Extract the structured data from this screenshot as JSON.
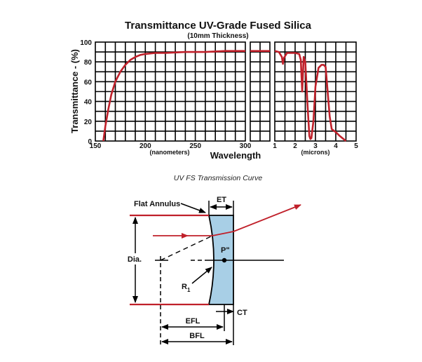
{
  "chart": {
    "title": "Transmittance UV-Grade Fused Silica",
    "subtitle": "(10mm Thickness)",
    "ylabel": "Transmittance - (%)",
    "xlabel": "Wavelength",
    "nm_unit": "(nanometers)",
    "micron_unit": "(microns)",
    "caption": "UV FS Transmission Curve",
    "curve_color": "#c0202a"
  },
  "chart_data": {
    "type": "line",
    "title": "Transmittance UV-Grade Fused Silica",
    "subtitle": "(10mm Thickness)",
    "xlabel": "Wavelength",
    "ylabel": "Transmittance - (%)",
    "ylim": [
      0,
      100
    ],
    "yticks": [
      "0",
      "20",
      "40",
      "60",
      "80",
      "100"
    ],
    "grid": true,
    "panels": [
      {
        "unit": "nanometers",
        "xlim": [
          150,
          300
        ],
        "xticks": [
          "150",
          "200",
          "250",
          "300"
        ],
        "x": [
          158,
          160,
          163,
          166,
          170,
          175,
          180,
          185,
          190,
          195,
          200,
          210,
          220,
          240,
          260,
          280,
          300
        ],
        "y": [
          0,
          15,
          32,
          47,
          60,
          70,
          77,
          82,
          85,
          87,
          88,
          89,
          89,
          90,
          90,
          91,
          91
        ]
      },
      {
        "unit": "broken axis",
        "x": [
          0,
          1
        ],
        "y": [
          91,
          91
        ]
      },
      {
        "unit": "microns",
        "xlim": [
          1,
          5
        ],
        "xticks": [
          "1",
          "2",
          "3",
          "4",
          "5"
        ],
        "x": [
          1.0,
          1.2,
          1.35,
          1.4,
          1.45,
          1.6,
          2.0,
          2.2,
          2.28,
          2.35,
          2.42,
          2.5,
          2.6,
          2.7,
          2.75,
          2.8,
          2.9,
          3.0,
          3.15,
          3.3,
          3.4,
          3.5,
          3.6,
          3.7,
          3.8,
          4.0,
          4.2,
          4.5
        ],
        "y": [
          91,
          90,
          85,
          78,
          84,
          89,
          89,
          88,
          82,
          50,
          85,
          80,
          40,
          5,
          2,
          3,
          20,
          55,
          74,
          77,
          77,
          75,
          50,
          25,
          12,
          9,
          5,
          0
        ]
      }
    ]
  },
  "lens_diagram": {
    "flat_annulus": "Flat Annulus",
    "et": "ET",
    "dia": "Dia.",
    "p_dprime": "P\"",
    "r1": "R",
    "r1_sub": "1",
    "efl": "EFL",
    "bfl": "BFL",
    "ct": "CT",
    "ray_color": "#c0202a",
    "lens_fill": "#a8cfe6"
  }
}
